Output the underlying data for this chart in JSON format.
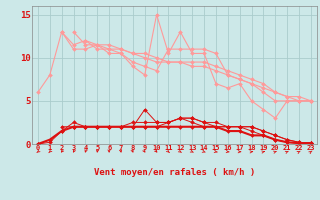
{
  "x": [
    0,
    1,
    2,
    3,
    4,
    5,
    6,
    7,
    8,
    9,
    10,
    11,
    12,
    13,
    14,
    15,
    16,
    17,
    18,
    19,
    20,
    21,
    22,
    23
  ],
  "line1": [
    6,
    8,
    13,
    11.5,
    12,
    11,
    11,
    10.5,
    9,
    8,
    15,
    10.5,
    13,
    10.5,
    10.5,
    7,
    6.5,
    7,
    5,
    4,
    3,
    5,
    5,
    5
  ],
  "line2": [
    null,
    null,
    13,
    11,
    11,
    11.5,
    10.5,
    10.5,
    9.5,
    9,
    8.5,
    11,
    11,
    11,
    11,
    10.5,
    8,
    7.5,
    7,
    6,
    5,
    5,
    5,
    5
  ],
  "line3": [
    null,
    null,
    null,
    13,
    11.5,
    11.5,
    11,
    11,
    10.5,
    10,
    9.5,
    9.5,
    9.5,
    9.5,
    9.5,
    9,
    8.5,
    8,
    7.5,
    7,
    6,
    5.5,
    5,
    5
  ],
  "line4": [
    null,
    null,
    null,
    null,
    12,
    11.5,
    11.5,
    11,
    10.5,
    10.5,
    10,
    9.5,
    9.5,
    9,
    9,
    8.5,
    8,
    7.5,
    7,
    6.5,
    6,
    5.5,
    5.5,
    5
  ],
  "line5": [
    0,
    0.2,
    1.5,
    2.5,
    2,
    2,
    2,
    2,
    2,
    4,
    2.5,
    2.5,
    3,
    2.5,
    2,
    2,
    2,
    2,
    1.5,
    1,
    0.5,
    0.2,
    0.1,
    0.1
  ],
  "line6": [
    null,
    null,
    2,
    2,
    2,
    2,
    2,
    2,
    2,
    2,
    2,
    2.5,
    3,
    3,
    2.5,
    2,
    2,
    2,
    2,
    1.5,
    1,
    0.5,
    0.2,
    0.1
  ],
  "line7": [
    null,
    null,
    null,
    2,
    2,
    2,
    2,
    2,
    2.5,
    2.5,
    2.5,
    2.5,
    3,
    3,
    2.5,
    2.5,
    2,
    2,
    2,
    1.5,
    1,
    0.5,
    0.2,
    0.1
  ],
  "line8": [
    0,
    0.5,
    1.5,
    2,
    2,
    2,
    2,
    2,
    2,
    2,
    2,
    2,
    2,
    2,
    2,
    2,
    1.5,
    1.5,
    1,
    1,
    0.5,
    0.2,
    0.1,
    0.1
  ],
  "bg_color": "#cce8e8",
  "grid_color": "#aacccc",
  "line_color_light": "#ff9999",
  "line_color_dark": "#dd1111",
  "marker": "D",
  "markersize": 2,
  "xlabel": "Vent moyen/en rafales ( km/h )",
  "ylim": [
    0,
    16
  ],
  "xlim": [
    -0.5,
    23.5
  ],
  "yticks": [
    0,
    5,
    10,
    15
  ],
  "xticks": [
    0,
    1,
    2,
    3,
    4,
    5,
    6,
    7,
    8,
    9,
    10,
    11,
    12,
    13,
    14,
    15,
    16,
    17,
    18,
    19,
    20,
    21,
    22,
    23
  ]
}
